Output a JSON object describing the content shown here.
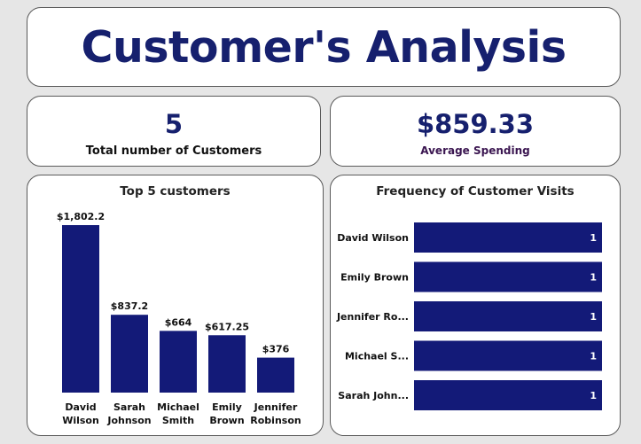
{
  "header": {
    "title": "Customer's Analysis"
  },
  "kpis": {
    "customers": {
      "value": "5",
      "label": "Total number of Customers"
    },
    "spending": {
      "value": "$859.33",
      "label": "Average Spending"
    }
  },
  "colors": {
    "bar": "#131a78",
    "title": "#16206e"
  },
  "chart_data": [
    {
      "type": "bar",
      "title": "Top 5 customers",
      "categories": [
        "David Wilson",
        "Sarah Johnson",
        "Michael Smith",
        "Emily Brown",
        "Jennifer Robinson"
      ],
      "category_lines": [
        [
          "David",
          "Wilson"
        ],
        [
          "Sarah",
          "Johnson"
        ],
        [
          "Michael",
          "Smith"
        ],
        [
          "Emily",
          "Brown"
        ],
        [
          "Jennifer",
          "Robinson"
        ]
      ],
      "values": [
        1802.2,
        837.2,
        664,
        617.25,
        376
      ],
      "data_labels": [
        "$1,802.2",
        "$837.2",
        "$664",
        "$617.25",
        "$376"
      ],
      "ylim": [
        0,
        1802.2
      ]
    },
    {
      "type": "bar",
      "orientation": "horizontal",
      "title": "Frequency of Customer Visits",
      "categories": [
        "David Wilson",
        "Emily Brown",
        "Jennifer Ro...",
        "Michael S...",
        "Sarah John..."
      ],
      "values": [
        1,
        1,
        1,
        1,
        1
      ],
      "data_labels": [
        "1",
        "1",
        "1",
        "1",
        "1"
      ],
      "xlim": [
        0,
        1
      ]
    }
  ]
}
